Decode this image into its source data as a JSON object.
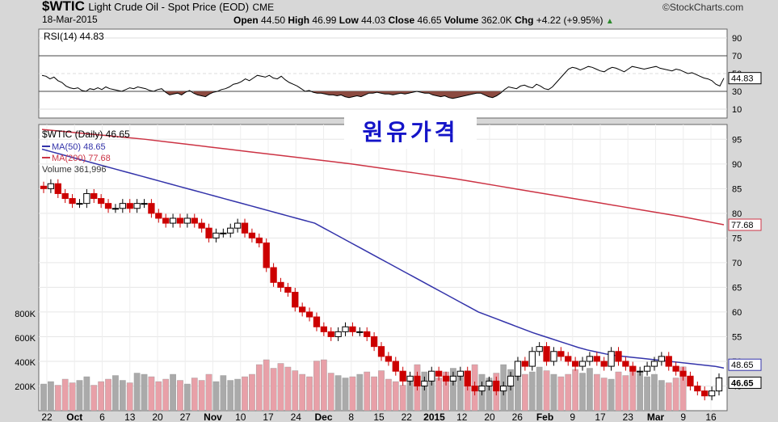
{
  "header": {
    "ticker": "$WTIC",
    "description": "Light Crude Oil - Spot Price (EOD)",
    "exchange": "CME",
    "date": "18-Mar-2015",
    "brand": "©StockCharts.com",
    "open_label": "Open",
    "open": "44.50",
    "high_label": "High",
    "high": "46.99",
    "low_label": "Low",
    "low": "44.03",
    "close_label": "Close",
    "close": "46.65",
    "volume_label": "Volume",
    "volume": "362.0K",
    "chg_label": "Chg",
    "chg": "+4.22 (+9.95%)",
    "chg_arrow": "▲"
  },
  "overlay_text": "원유가격",
  "colors": {
    "background": "#d7d7d7",
    "plot_bg": "#ffffff",
    "up_candle": "#000000",
    "down_candle": "#cc0000",
    "ma50": "#3333aa",
    "ma200": "#cc3344",
    "rsi_line": "#000000",
    "rsi_oversold_fill": "#8b4a40",
    "volume_up": "#aaaaaa",
    "volume_down": "#e8a0a8"
  },
  "chart_data": [
    {
      "type": "line",
      "panel": "RSI",
      "legend": "RSI(14) 44.83",
      "series": [
        {
          "name": "RSI(14)",
          "values": [
            48,
            47,
            44,
            46,
            42,
            40,
            36,
            34,
            33,
            34,
            31,
            30,
            33,
            32,
            34,
            32,
            35,
            33,
            32,
            31,
            30,
            32,
            34,
            33,
            35,
            34,
            33,
            31,
            30,
            32,
            33,
            29,
            26,
            27,
            28,
            26,
            29,
            31,
            28,
            26,
            25,
            24,
            27,
            29,
            30,
            32,
            33,
            35,
            38,
            39,
            41,
            44,
            42,
            45,
            48,
            47,
            46,
            48,
            45,
            44,
            47,
            43,
            40,
            38,
            36,
            33,
            30,
            31,
            29,
            28,
            28,
            27,
            26,
            26,
            25,
            26,
            24,
            23,
            24,
            25,
            24,
            26,
            28,
            28,
            29,
            28,
            27,
            27,
            26,
            27,
            28,
            27,
            28,
            29,
            30,
            29,
            28,
            28,
            26,
            25,
            24,
            25,
            23,
            22,
            23,
            24,
            25,
            26,
            27,
            28,
            28,
            26,
            24,
            23,
            25,
            28,
            32,
            35,
            34,
            33,
            36,
            37,
            35,
            34,
            38,
            36,
            33,
            32,
            35,
            40,
            45,
            50,
            55,
            57,
            56,
            54,
            56,
            58,
            57,
            55,
            53,
            52,
            55,
            57,
            56,
            54,
            52,
            55,
            58,
            57,
            56,
            55,
            56,
            57,
            58,
            56,
            55,
            54,
            53,
            55,
            54,
            52,
            50,
            51,
            49,
            47,
            45,
            44,
            42,
            38,
            36,
            44.83
          ]
        }
      ],
      "y_ticks": [
        10,
        30,
        50,
        70,
        90
      ],
      "value_label": "44.83",
      "ylim": [
        0,
        100
      ]
    },
    {
      "type": "candlestick",
      "panel": "price",
      "legend": [
        "$WTIC (Daily) 46.65",
        "MA(50) 48.65",
        "MA(200) 77.68",
        "Volume 361,996"
      ],
      "series": [
        {
          "name": "$WTIC (Daily)",
          "close": [
            85,
            86,
            84,
            83,
            82,
            82,
            84,
            83,
            82,
            81,
            81,
            82,
            81,
            82,
            82,
            80,
            79,
            78,
            79,
            78,
            79,
            78,
            77,
            75,
            76,
            76,
            77,
            78,
            76,
            75,
            74,
            69,
            66,
            65,
            64,
            61,
            60,
            59,
            57,
            56,
            55,
            56,
            57,
            56,
            56,
            55,
            53,
            51,
            50,
            48,
            46,
            47,
            45,
            46,
            48,
            47,
            46,
            47,
            48,
            45,
            44,
            45,
            46,
            44,
            45,
            47,
            50,
            49,
            52,
            53,
            50,
            52,
            51,
            50,
            49,
            50,
            51,
            50,
            49,
            52,
            50,
            49,
            48,
            48,
            49,
            50,
            51,
            49,
            48,
            47,
            45,
            44,
            43,
            44,
            46.65
          ]
        },
        {
          "name": "MA(50)",
          "values": [
            93,
            92.5,
            92,
            91.5,
            91,
            90.5,
            90,
            89.5,
            89,
            88.5,
            88,
            87.5,
            87,
            86.5,
            86,
            85.5,
            85,
            84.5,
            84,
            83.5,
            83,
            82.5,
            82,
            81.5,
            81,
            80.5,
            80,
            79.5,
            79,
            78.5,
            78,
            77,
            76,
            75,
            74,
            73,
            72,
            71,
            70,
            69,
            68,
            67,
            66,
            65,
            64,
            63,
            62,
            61,
            60,
            59.3,
            58.6,
            57.9,
            57.2,
            56.5,
            55.8,
            55.2,
            54.6,
            54,
            53.4,
            52.8,
            52.3,
            51.9,
            51.5,
            51.2,
            51,
            50.8,
            50.6,
            50.4,
            50.2,
            50,
            49.8,
            49.6,
            49.4,
            49.2,
            49,
            48.65
          ]
        },
        {
          "name": "MA(200)",
          "values": [
            97,
            96.6,
            96.2,
            95.8,
            95.4,
            95,
            94.5,
            94,
            93.5,
            93,
            92.5,
            92,
            91.5,
            91,
            90.5,
            90,
            89.4,
            88.8,
            88.2,
            87.6,
            87,
            86.3,
            85.6,
            84.9,
            84.2,
            83.5,
            82.8,
            82.1,
            81.4,
            80.7,
            80,
            79.3,
            78.5,
            77.68
          ]
        },
        {
          "name": "Volume",
          "values": [
            220,
            240,
            210,
            260,
            230,
            250,
            280,
            210,
            240,
            260,
            290,
            250,
            230,
            310,
            300,
            280,
            240,
            260,
            300,
            250,
            220,
            270,
            250,
            300,
            240,
            290,
            250,
            260,
            280,
            300,
            380,
            420,
            350,
            390,
            360,
            330,
            300,
            280,
            410,
            420,
            310,
            290,
            270,
            280,
            300,
            320,
            280,
            330,
            260,
            240,
            210,
            250,
            380,
            320,
            300,
            270,
            320,
            350,
            290,
            330,
            380,
            300,
            270,
            310,
            380,
            340,
            350,
            300,
            320,
            360,
            330,
            300,
            280,
            300,
            340,
            310,
            350,
            300,
            270,
            260,
            320,
            290,
            340,
            310,
            280,
            300,
            250,
            230,
            270,
            362
          ]
        }
      ],
      "x_ticks": [
        "22",
        "Oct",
        "6",
        "13",
        "20",
        "27",
        "Nov",
        "10",
        "17",
        "24",
        "Dec",
        "8",
        "15",
        "22",
        "2015",
        "12",
        "20",
        "26",
        "Feb",
        "9",
        "17",
        "23",
        "Mar",
        "9",
        "16"
      ],
      "y_ticks_price": [
        45,
        50,
        55,
        60,
        65,
        70,
        75,
        80,
        85,
        90,
        95
      ],
      "y_ticks_volume": [
        "200K",
        "400K",
        "600K",
        "800K"
      ],
      "value_labels": [
        "77.68",
        "48.65",
        "46.65"
      ]
    }
  ]
}
